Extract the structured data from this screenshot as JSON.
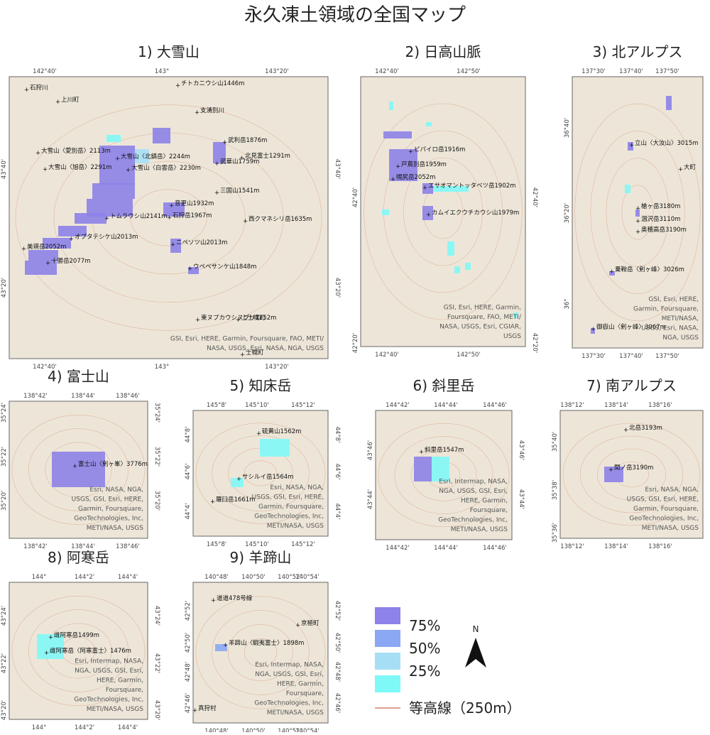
{
  "title": "永久凍土領域の全国マップ",
  "panels": [
    {
      "title": "1) 大雪山",
      "xticks": [
        "142°40'",
        "143°",
        "143°20'"
      ],
      "yticks": [
        "43°40'",
        "43°20'"
      ],
      "labels": [
        "チトカニウシ山1446m",
        "上川町",
        "石狩川",
        "支湧別川",
        "武利岳1876m",
        "大雪山〈愛別岳〉2113m",
        "北見富士1291m",
        "大雪山〈北鎮岳〉2244m",
        "武華山1759m",
        "大雪山〈旭岳〉2291m",
        "大雪山〈白雲岳〉2230m",
        "三国山1541m",
        "音更山1932m",
        "石狩岳1967m",
        "トムラウシ山2141m",
        "西クマネシリ岳1635m",
        "オプタテシケ山2013m",
        "ニペソツ山2013m",
        "美瑛岳2052m",
        "十勝岳2077m",
        "ウペペサンケ山1848m",
        "東ヌプカウシヌプリ1252m",
        "上士幌町",
        "士幌町"
      ],
      "attribution": [
        "GSI, Esri, HERE, Garmin, Foursquare, FAO, METI/",
        "NASA, USGS, Esri, NASA, NGA, USGS"
      ]
    },
    {
      "title": "2) 日高山脈",
      "xticks": [
        "142°40'",
        "142°50'"
      ],
      "yticks": [
        "42°40'",
        "42°20'"
      ],
      "labels": [
        "ピパイロ岳1916m",
        "戸蔦別岳1959m",
        "幌尻岳2052m",
        "エサオマントッタベツ岳1902m",
        "カムイエクウチカウシ山1979m"
      ],
      "attribution": [
        "GSI, Esri, HERE, Garmin,",
        "Foursquare, FAO, METI/",
        "NASA, USGS, Esri, CGIAR,",
        "USGS"
      ]
    },
    {
      "title": "3) 北アルプス",
      "xticks": [
        "137°30'",
        "137°40'",
        "137°50'"
      ],
      "yticks": [
        "36°40'",
        "36°20'",
        "36°"
      ],
      "labels": [
        "立山〈大汝山〉3015m",
        "大町",
        "槍ヶ岳3180m",
        "涸沢岳3110m",
        "奥穂高岳3190m",
        "乗鞍岳〈剣ヶ峰〉3026m",
        "御嶽山〈剣ヶ峰〉3067m"
      ],
      "attribution": [
        "GSI, Esri, HERE,",
        "Garmin, Foursquare,",
        "METI/NASA,",
        "USGS, Esri, NASA,",
        "NGA, USGS"
      ]
    },
    {
      "title": "4) 富士山",
      "xticks": [
        "138°42'",
        "138°44'",
        "138°46'"
      ],
      "yticks": [
        "35°24'",
        "35°22'",
        "35°20'"
      ],
      "labels": [
        "富士山〈剣ヶ峯〉3776m"
      ],
      "attribution": [
        "Esri, NASA, NGA,",
        "USGS, GSI, Esri, HERE,",
        "Garmin, Foursquare,",
        "GeoTechnologies, Inc,",
        "METI/NASA, USGS"
      ]
    },
    {
      "title": "5) 知床岳",
      "xticks": [
        "145°8'",
        "145°10'",
        "145°12'"
      ],
      "yticks": [
        "44°8'",
        "44°6'",
        "44°4'"
      ],
      "labels": [
        "硫黄山1562m",
        "サシルイ岳1564m",
        "羅臼岳1661m"
      ],
      "attribution": [
        "Esri, NASA, NGA,",
        "USGS, GSI, Esri, HERE,",
        "Garmin, Foursquare,",
        "GeoTechnologies, Inc,",
        "METI/NASA, USGS"
      ]
    },
    {
      "title": "6) 斜里岳",
      "xticks": [
        "144°42'",
        "144°44'",
        "144°46'"
      ],
      "yticks": [
        "43°46'",
        "43°44'"
      ],
      "labels": [
        "斜里岳1547m"
      ],
      "attribution": [
        "Esri, Intermap, NASA,",
        "NGA, USGS, GSI, Esri,",
        "HERE, Garmin,",
        "Foursquare,",
        "GeoTechnologies, Inc,",
        "METI/NASA, USGS"
      ]
    },
    {
      "title": "7) 南アルプス",
      "xticks": [
        "138°12'",
        "138°14'",
        "138°16'"
      ],
      "yticks": [
        "35°40'",
        "35°38'",
        "35°36'"
      ],
      "labels": [
        "北岳3193m",
        "間ノ岳3190m"
      ],
      "attribution": [
        "Esri, NASA, NGA,",
        "USGS, GSI, Esri, HERE,",
        "Garmin, Foursquare,",
        "GeoTechnologies, Inc,",
        "METI/NASA, USGS"
      ]
    },
    {
      "title": "8) 阿寒岳",
      "xticks": [
        "144°",
        "144°2'",
        "144°4'"
      ],
      "yticks": [
        "43°24'",
        "43°22'",
        "43°20'"
      ],
      "labels": [
        "雌阿寒岳1499m",
        "雌阿寒岳〈阿寒富士〉1476m"
      ],
      "attribution": [
        "Esri, Intermap, NASA,",
        "NGA, USGS, GSI, Esri,",
        "HERE, Garmin,",
        "Foursquare,",
        "GeoTechnologies, Inc,",
        "METI/NASA, USGS"
      ]
    },
    {
      "title": "9) 羊蹄山",
      "xticks": [
        "140°48'",
        "140°50'",
        "140°52'",
        "140°54'"
      ],
      "yticks": [
        "42°52'",
        "42°50'",
        "42°48'",
        "42°46'"
      ],
      "labels": [
        "羊蹄山〈蝦夷富士〉1898m",
        "京極町",
        "真狩村",
        "道道478号線"
      ],
      "attribution": [
        "Esri, Intermap, NASA,",
        "NGA, USGS, GSI, Esri,",
        "HERE, Garmin,",
        "Foursquare,",
        "GeoTechnologies, Inc,",
        "METI/NASA, USGS"
      ]
    }
  ],
  "legend": {
    "items": [
      "75%",
      "50%",
      "25%"
    ],
    "contour": "等高線（250m）"
  },
  "north": "N"
}
